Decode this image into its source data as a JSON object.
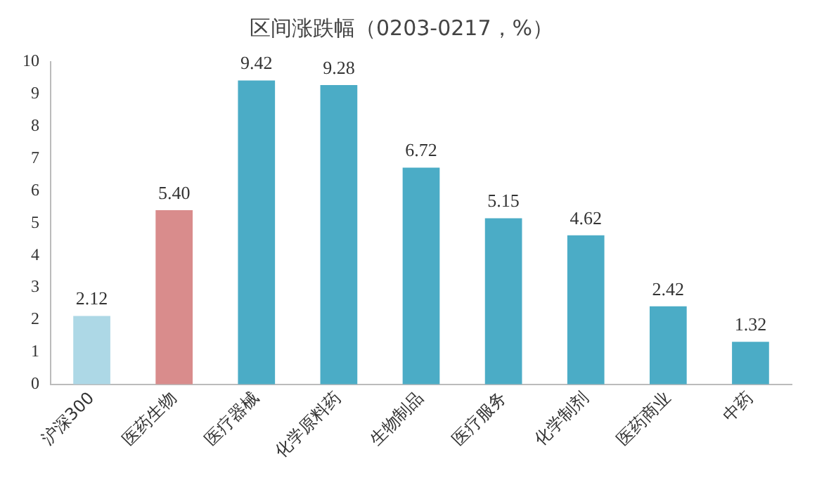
{
  "chart_data": {
    "type": "bar",
    "title": "区间涨跌幅（0203-0217，%）",
    "categories": [
      "沪深300",
      "医药生物",
      "医疗器械",
      "化学原料药",
      "生物制品",
      "医疗服务",
      "化学制剂",
      "医药商业",
      "中药"
    ],
    "values": [
      2.12,
      5.4,
      9.42,
      9.28,
      6.72,
      5.15,
      4.62,
      2.42,
      1.32
    ],
    "value_labels": [
      "2.12",
      "5.40",
      "9.42",
      "9.28",
      "6.72",
      "5.15",
      "4.62",
      "2.42",
      "1.32"
    ],
    "colors": [
      "#add8e6",
      "#d98c8c",
      "#4bacc6",
      "#4bacc6",
      "#4bacc6",
      "#4bacc6",
      "#4bacc6",
      "#4bacc6",
      "#4bacc6"
    ],
    "ylim": [
      0,
      10
    ],
    "yticks": [
      0,
      1,
      2,
      3,
      4,
      5,
      6,
      7,
      8,
      9,
      10
    ],
    "grid": false,
    "legend": false
  }
}
